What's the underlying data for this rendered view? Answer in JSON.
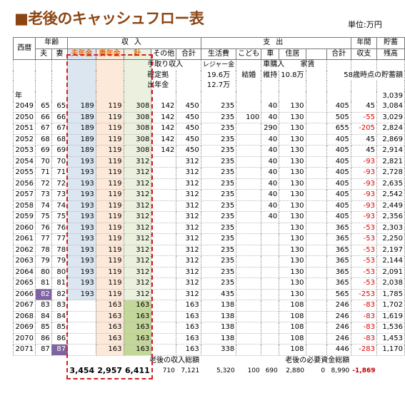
{
  "title": "■老後のキャッシュフロー表",
  "unit": "単位:万円",
  "table": {
    "header_groups": [
      "西暦",
      "年齢",
      "収入",
      "支出",
      "年間",
      "貯蓄"
    ],
    "header_columns": [
      "夫",
      "妻",
      "夫年金",
      "妻年金",
      "計",
      "その他",
      "合計",
      "生活費",
      "こども",
      "車",
      "住居",
      "合計",
      "収支",
      "残高"
    ],
    "notes": {
      "row1": [
        "手取り収入",
        "レジャー金",
        "車購入",
        "家賃"
      ],
      "row2": [
        "確定拠",
        "19.6万",
        "結婚",
        "維持",
        "10.8万",
        "58歳時点の貯蓄額"
      ],
      "row3": [
        "出年金",
        "12.7万"
      ],
      "row4": [
        "年",
        "3,039"
      ]
    },
    "rows": [
      [
        "2049",
        "65",
        "65",
        "189",
        "119",
        "308",
        "142",
        "450",
        "235",
        null,
        "40",
        "130",
        null,
        "405",
        "45",
        "3,084"
      ],
      [
        "2050",
        "66",
        "66",
        "189",
        "119",
        "308",
        "142",
        "450",
        "235",
        "100",
        "40",
        "130",
        null,
        "505",
        "-55",
        "3,029"
      ],
      [
        "2051",
        "67",
        "67",
        "189",
        "119",
        "308",
        "142",
        "450",
        "235",
        null,
        "290",
        "130",
        null,
        "655",
        "-205",
        "2,824"
      ],
      [
        "2052",
        "68",
        "68",
        "189",
        "119",
        "308",
        "142",
        "450",
        "235",
        null,
        "40",
        "130",
        null,
        "405",
        "45",
        "2,869"
      ],
      [
        "2053",
        "69",
        "69",
        "189",
        "119",
        "308",
        "142",
        "450",
        "235",
        null,
        "40",
        "130",
        null,
        "405",
        "45",
        "2,914"
      ],
      [
        "2054",
        "70",
        "70",
        "193",
        "119",
        "312",
        null,
        "312",
        "235",
        null,
        "40",
        "130",
        null,
        "405",
        "-93",
        "2,821"
      ],
      [
        "2055",
        "71",
        "71",
        "193",
        "119",
        "312",
        null,
        "312",
        "235",
        null,
        "40",
        "130",
        null,
        "405",
        "-93",
        "2,728"
      ],
      [
        "2056",
        "72",
        "72",
        "193",
        "119",
        "312",
        null,
        "312",
        "235",
        null,
        "40",
        "130",
        null,
        "405",
        "-93",
        "2,635"
      ],
      [
        "2057",
        "73",
        "73",
        "193",
        "119",
        "312",
        null,
        "312",
        "235",
        null,
        "40",
        "130",
        null,
        "405",
        "-93",
        "2,542"
      ],
      [
        "2058",
        "74",
        "74",
        "193",
        "119",
        "312",
        null,
        "312",
        "235",
        null,
        "40",
        "130",
        null,
        "405",
        "-93",
        "2,449"
      ],
      [
        "2059",
        "75",
        "75",
        "193",
        "119",
        "312",
        null,
        "312",
        "235",
        null,
        "40",
        "130",
        null,
        "405",
        "-93",
        "2,356"
      ],
      [
        "2060",
        "76",
        "76",
        "193",
        "119",
        "312",
        null,
        "312",
        "235",
        null,
        null,
        "130",
        null,
        "365",
        "-53",
        "2,303"
      ],
      [
        "2061",
        "77",
        "77",
        "193",
        "119",
        "312",
        null,
        "312",
        "235",
        null,
        null,
        "130",
        null,
        "365",
        "-53",
        "2,250"
      ],
      [
        "2062",
        "78",
        "78",
        "193",
        "119",
        "312",
        null,
        "312",
        "235",
        null,
        null,
        "130",
        null,
        "365",
        "-53",
        "2,197"
      ],
      [
        "2063",
        "79",
        "79",
        "193",
        "119",
        "312",
        null,
        "312",
        "235",
        null,
        null,
        "130",
        null,
        "365",
        "-53",
        "2,144"
      ],
      [
        "2064",
        "80",
        "80",
        "193",
        "119",
        "312",
        null,
        "312",
        "235",
        null,
        null,
        "130",
        null,
        "365",
        "-53",
        "2,091"
      ],
      [
        "2065",
        "81",
        "81",
        "193",
        "119",
        "312",
        null,
        "312",
        "235",
        null,
        null,
        "130",
        null,
        "365",
        "-53",
        "2,038"
      ],
      [
        "2066",
        "82",
        "82",
        "193",
        "119",
        "312",
        null,
        "312",
        "435",
        null,
        null,
        "130",
        null,
        "565",
        "-253",
        "1,785"
      ],
      [
        "2067",
        "83",
        "83",
        null,
        "163",
        "163",
        null,
        "163",
        "138",
        null,
        null,
        "108",
        null,
        "246",
        "-83",
        "1,702"
      ],
      [
        "2068",
        "84",
        "84",
        null,
        "163",
        "163",
        null,
        "163",
        "138",
        null,
        null,
        "108",
        null,
        "246",
        "-83",
        "1,619"
      ],
      [
        "2069",
        "85",
        "85",
        null,
        "163",
        "163",
        null,
        "163",
        "138",
        null,
        null,
        "108",
        null,
        "246",
        "-83",
        "1,536"
      ],
      [
        "2070",
        "86",
        "86",
        null,
        "163",
        "163",
        null,
        "163",
        "138",
        null,
        null,
        "108",
        null,
        "246",
        "-83",
        "1,453"
      ],
      [
        "2071",
        "87",
        "87",
        null,
        "163",
        "163",
        null,
        "163",
        "338",
        null,
        null,
        "108",
        null,
        "446",
        "-283",
        "1,170"
      ]
    ],
    "total_labels": [
      "老後の収入総額",
      "老後の必要資金総額"
    ],
    "totals": [
      null,
      null,
      null,
      "3,454",
      "2,957",
      "6,411",
      "710",
      "7,121",
      "5,320",
      "100",
      "690",
      "2,880",
      "0",
      "8,990",
      "-1,869",
      null
    ]
  }
}
